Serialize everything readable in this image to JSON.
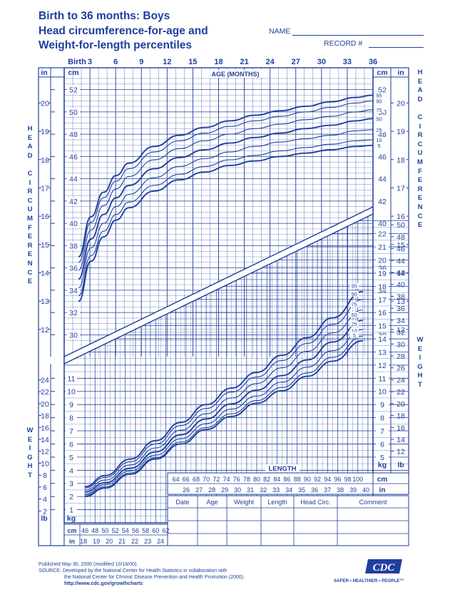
{
  "header": {
    "title_line1": "Birth to 36 months: Boys",
    "title_line2": "Head circumference-for-age and",
    "title_line3": "Weight-for-length percentiles",
    "name_label": "NAME",
    "record_label": "RECORD #"
  },
  "side_labels": {
    "left_top": "HEAD CIRCUMFERENCE",
    "right_top": "HEAD CIRCUMFERENCE",
    "left_bottom": "WEIGHT",
    "right_bottom": "WEIGHT"
  },
  "footer": {
    "line1": "Published May 30, 2000 (modified 10/16/00).",
    "line2": "SOURCE: Developed by the National Center for Health Statistics in collaboration with",
    "line3": "the National Center for Chronic Disease Prevention and Health Promotion (2000).",
    "line4": "http://www.cdc.gov/growthcharts",
    "logo_text": "CDC",
    "tagline": "SAFER • HEALTHIER • PEOPLE™"
  },
  "record_table": {
    "headers": [
      "Date",
      "Age",
      "Weight",
      "Length",
      "Head Circ.",
      "Comment"
    ]
  },
  "chart_data": [
    {
      "type": "line",
      "name_printed": "AGE (MONTHS)",
      "x_axis": {
        "label": "AGE (MONTHS)",
        "ticks": [
          "Birth",
          "3",
          "6",
          "9",
          "12",
          "15",
          "18",
          "21",
          "24",
          "27",
          "30",
          "33",
          "36"
        ],
        "range": [
          0,
          36
        ]
      },
      "y_axis": {
        "cm_unit": "cm",
        "in_unit": "in",
        "cm_ticks": [
          30,
          32,
          34,
          36,
          38,
          40,
          42,
          44,
          46,
          48,
          50,
          52
        ],
        "in_ticks": [
          12,
          13,
          14,
          15,
          16,
          17,
          18,
          19,
          20
        ],
        "range_cm": [
          29,
          53
        ]
      },
      "x": [
        0,
        1.5,
        3,
        4.5,
        6,
        9,
        12,
        15,
        18,
        21,
        24,
        27,
        30,
        33,
        35
      ],
      "series": [
        {
          "name": "95",
          "values": [
            37.0,
            40.6,
            42.8,
            44.3,
            45.4,
            46.9,
            47.9,
            48.6,
            49.2,
            49.7,
            50.1,
            50.5,
            50.9,
            51.3,
            51.5
          ]
        },
        {
          "name": "90",
          "values": [
            36.5,
            40.1,
            42.3,
            43.8,
            44.9,
            46.4,
            47.4,
            48.1,
            48.7,
            49.2,
            49.6,
            50.0,
            50.4,
            50.8,
            51.0
          ]
        },
        {
          "name": "75",
          "values": [
            35.8,
            39.4,
            41.6,
            43.1,
            44.2,
            45.7,
            46.7,
            47.4,
            48.0,
            48.5,
            48.9,
            49.3,
            49.6,
            50.0,
            50.2
          ]
        },
        {
          "name": "50",
          "values": [
            35.0,
            38.6,
            40.8,
            42.3,
            43.4,
            44.9,
            45.9,
            46.6,
            47.2,
            47.7,
            48.1,
            48.5,
            48.8,
            49.2,
            49.4
          ]
        },
        {
          "name": "25",
          "values": [
            34.2,
            37.8,
            40.0,
            41.5,
            42.6,
            44.1,
            45.1,
            45.8,
            46.4,
            46.9,
            47.3,
            47.6,
            47.9,
            48.3,
            48.4
          ]
        },
        {
          "name": "10",
          "values": [
            33.5,
            37.1,
            39.3,
            40.8,
            41.9,
            43.4,
            44.4,
            45.1,
            45.7,
            46.1,
            46.5,
            46.8,
            47.1,
            47.4,
            47.5
          ]
        },
        {
          "name": "5",
          "values": [
            33.0,
            36.6,
            38.8,
            40.3,
            41.4,
            42.9,
            43.9,
            44.6,
            45.2,
            45.6,
            46.0,
            46.3,
            46.6,
            46.9,
            47.0
          ]
        }
      ]
    },
    {
      "type": "line",
      "name_printed": "LENGTH",
      "x_axis": {
        "label": "LENGTH",
        "cm_unit": "cm",
        "in_unit": "in",
        "cm_ticks_left": [
          "cm",
          46,
          48,
          50,
          52,
          54,
          56,
          58,
          60,
          62
        ],
        "in_ticks_left": [
          "in",
          18,
          19,
          20,
          21,
          22,
          23,
          24
        ],
        "cm_ticks_right": [
          64,
          66,
          68,
          70,
          72,
          74,
          76,
          78,
          80,
          82,
          84,
          86,
          88,
          90,
          92,
          94,
          96,
          98,
          100
        ],
        "in_ticks_right": [
          26,
          27,
          28,
          29,
          30,
          31,
          32,
          33,
          34,
          35,
          36,
          37,
          38,
          39,
          40,
          41
        ],
        "range_cm": [
          45,
          103
        ]
      },
      "y_axis": {
        "kg_unit": "kg",
        "lb_unit": "lb",
        "kg_ticks": [
          1,
          2,
          3,
          4,
          5,
          6,
          7,
          8,
          9,
          10,
          11,
          12,
          13,
          14,
          15,
          16,
          17,
          18,
          19,
          20,
          21,
          22
        ],
        "lb_ticks": [
          2,
          4,
          6,
          8,
          10,
          12,
          14,
          16,
          18,
          20,
          22,
          24,
          26,
          28,
          30,
          32,
          34,
          36,
          38,
          40,
          42,
          44,
          46,
          48,
          50
        ],
        "range_kg": [
          0,
          23.5
        ]
      },
      "x": [
        46,
        50,
        55,
        60,
        65,
        70,
        75,
        80,
        85,
        90,
        95,
        101
      ],
      "series": [
        {
          "name": "95",
          "values": [
            2.75,
            3.6,
            4.85,
            6.25,
            7.65,
            9.0,
            10.25,
            11.45,
            12.75,
            14.1,
            15.6,
            17.6
          ]
        },
        {
          "name": "90",
          "values": [
            2.65,
            3.45,
            4.65,
            6.0,
            7.4,
            8.7,
            9.95,
            11.1,
            12.35,
            13.65,
            15.1,
            17.0
          ]
        },
        {
          "name": "75",
          "values": [
            2.5,
            3.25,
            4.4,
            5.7,
            7.05,
            8.3,
            9.5,
            10.6,
            11.8,
            13.05,
            14.45,
            16.2
          ]
        },
        {
          "name": "50",
          "values": [
            2.35,
            3.05,
            4.15,
            5.4,
            6.7,
            7.9,
            9.05,
            10.1,
            11.2,
            12.4,
            13.75,
            15.4
          ]
        },
        {
          "name": "25",
          "values": [
            2.2,
            2.9,
            3.95,
            5.15,
            6.4,
            7.55,
            8.65,
            9.65,
            10.7,
            11.85,
            13.1,
            14.7
          ]
        },
        {
          "name": "10",
          "values": [
            2.1,
            2.75,
            3.8,
            4.95,
            6.15,
            7.25,
            8.3,
            9.3,
            10.3,
            11.4,
            12.6,
            14.2
          ]
        },
        {
          "name": "5",
          "values": [
            2.0,
            2.65,
            3.7,
            4.85,
            6.0,
            7.1,
            8.1,
            9.1,
            10.05,
            11.15,
            12.3,
            13.85
          ]
        }
      ]
    }
  ]
}
